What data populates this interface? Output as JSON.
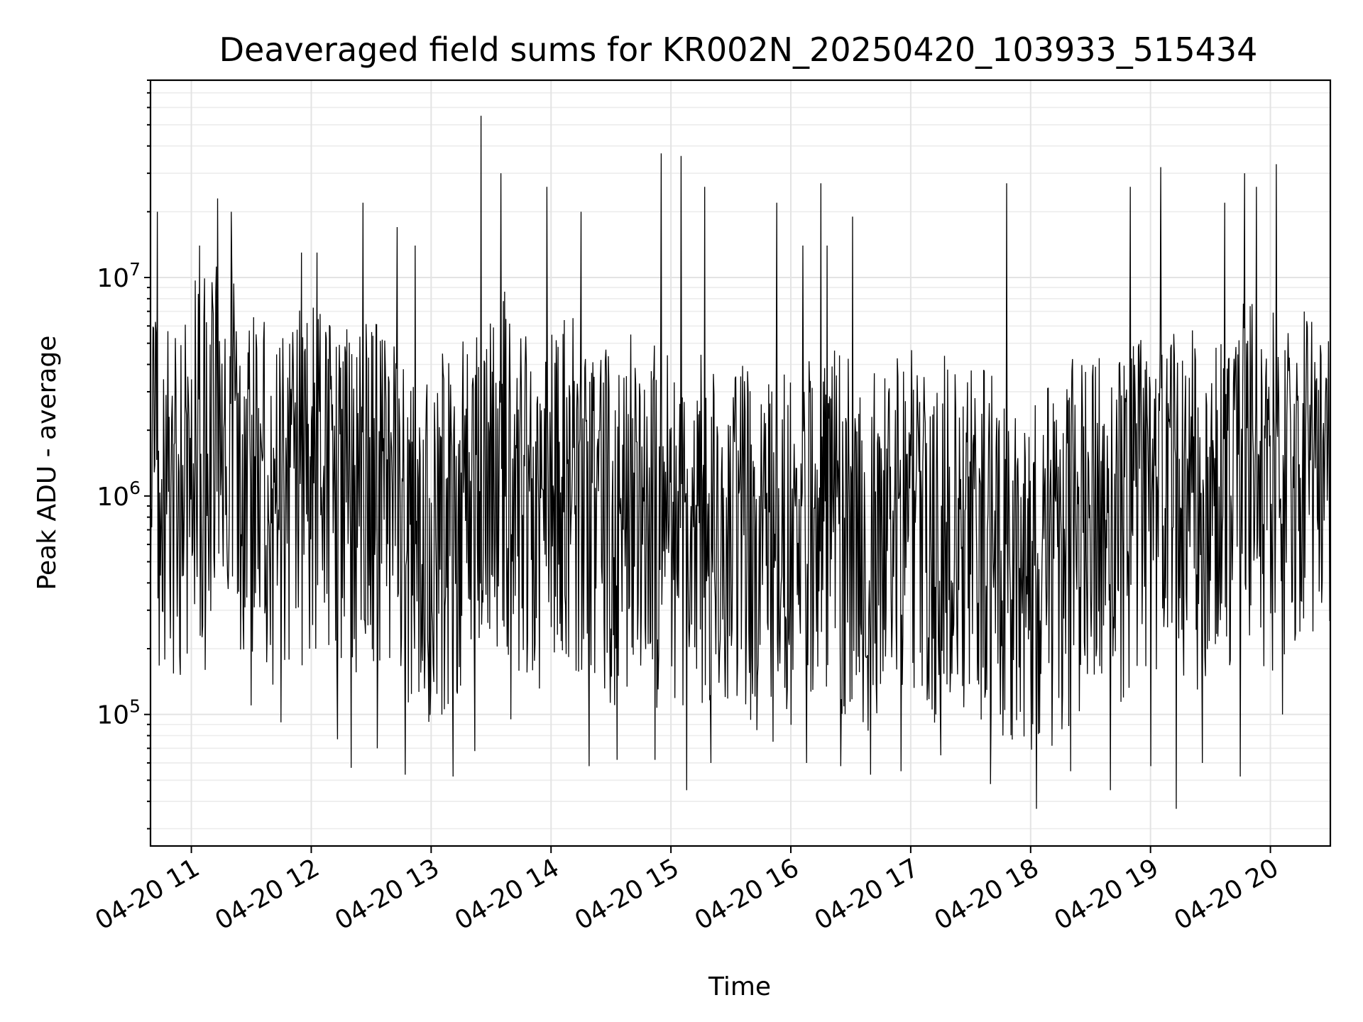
{
  "chart_data": {
    "type": "line",
    "title": "Deaveraged field sums for KR002N_20250420_103933_515434",
    "xlabel": "Time",
    "ylabel": "Peak ADU - average",
    "xlim": [
      "2025-04-20T10:39:33",
      "2025-04-20T20:30:00"
    ],
    "ylim": [
      25000,
      80000000
    ],
    "yscale": "log",
    "grid": true,
    "x_ticks": [
      "2025-04-20T11:00",
      "2025-04-20T12:00",
      "2025-04-20T13:00",
      "2025-04-20T14:00",
      "2025-04-20T15:00",
      "2025-04-20T16:00",
      "2025-04-20T17:00",
      "2025-04-20T18:00",
      "2025-04-20T19:00",
      "2025-04-20T20:00"
    ],
    "x_tick_labels": [
      "04-20 11",
      "04-20 12",
      "04-20 13",
      "04-20 14",
      "04-20 15",
      "04-20 16",
      "04-20 17",
      "04-20 18",
      "04-20 19",
      "04-20 20"
    ],
    "y_ticks": [
      100000,
      1000000,
      10000000
    ],
    "y_tick_labels": [
      {
        "base": "10",
        "exp": "5"
      },
      {
        "base": "10",
        "exp": "6"
      },
      {
        "base": "10",
        "exp": "7"
      }
    ],
    "series": [
      {
        "color": "#000000",
        "x": [
          "2025-04-20T10:40",
          "2025-04-20T10:50",
          "2025-04-20T11:00",
          "2025-04-20T11:10",
          "2025-04-20T11:20",
          "2025-04-20T11:30",
          "2025-04-20T11:40",
          "2025-04-20T11:50",
          "2025-04-20T12:00",
          "2025-04-20T12:10",
          "2025-04-20T12:20",
          "2025-04-20T12:30",
          "2025-04-20T12:40",
          "2025-04-20T12:50",
          "2025-04-20T13:00",
          "2025-04-20T13:10",
          "2025-04-20T13:20",
          "2025-04-20T13:30",
          "2025-04-20T13:40",
          "2025-04-20T13:50",
          "2025-04-20T14:00",
          "2025-04-20T14:10",
          "2025-04-20T14:20",
          "2025-04-20T14:30",
          "2025-04-20T14:40",
          "2025-04-20T14:50",
          "2025-04-20T15:00",
          "2025-04-20T15:10",
          "2025-04-20T15:20",
          "2025-04-20T15:30",
          "2025-04-20T15:40",
          "2025-04-20T15:50",
          "2025-04-20T16:00",
          "2025-04-20T16:10",
          "2025-04-20T16:20",
          "2025-04-20T16:30",
          "2025-04-20T16:40",
          "2025-04-20T16:50",
          "2025-04-20T17:00",
          "2025-04-20T17:10",
          "2025-04-20T17:20",
          "2025-04-20T17:30",
          "2025-04-20T17:40",
          "2025-04-20T17:50",
          "2025-04-20T18:00",
          "2025-04-20T18:10",
          "2025-04-20T18:20",
          "2025-04-20T18:30",
          "2025-04-20T18:40",
          "2025-04-20T18:50",
          "2025-04-20T19:00",
          "2025-04-20T19:10",
          "2025-04-20T19:20",
          "2025-04-20T19:30",
          "2025-04-20T19:40",
          "2025-04-20T19:50",
          "2025-04-20T20:00",
          "2025-04-20T20:10",
          "2025-04-20T20:20",
          "2025-04-20T20:30"
        ],
        "y": [
          1500000,
          1200000,
          2000000,
          2500000,
          2200000,
          1600000,
          1300000,
          1500000,
          1800000,
          1500000,
          1400000,
          1500000,
          1300000,
          1100000,
          900000,
          1000000,
          1200000,
          2000000,
          1800000,
          1200000,
          1300000,
          1500000,
          1200000,
          1000000,
          1200000,
          1100000,
          900000,
          1100000,
          1000000,
          1200000,
          900000,
          700000,
          800000,
          900000,
          1000000,
          900000,
          800000,
          900000,
          1000000,
          800000,
          1000000,
          900000,
          800000,
          700000,
          600000,
          700000,
          900000,
          1000000,
          1000000,
          1200000,
          1100000,
          1300000,
          1200000,
          1400000,
          1500000,
          1800000,
          1600000,
          1400000,
          1600000,
          1800000
        ],
        "peak_x": [
          "2025-04-20T10:43",
          "2025-04-20T11:04",
          "2025-04-20T11:13",
          "2025-04-20T11:20",
          "2025-04-20T11:55",
          "2025-04-20T12:03",
          "2025-04-20T12:26",
          "2025-04-20T12:43",
          "2025-04-20T12:52",
          "2025-04-20T13:25",
          "2025-04-20T13:35",
          "2025-04-20T13:58",
          "2025-04-20T14:15",
          "2025-04-20T14:55",
          "2025-04-20T15:05",
          "2025-04-20T15:17",
          "2025-04-20T15:53",
          "2025-04-20T16:06",
          "2025-04-20T16:15",
          "2025-04-20T16:18",
          "2025-04-20T16:31",
          "2025-04-20T17:48",
          "2025-04-20T18:50",
          "2025-04-20T19:05",
          "2025-04-20T19:37",
          "2025-04-20T19:47",
          "2025-04-20T19:53",
          "2025-04-20T20:03"
        ],
        "peak_y": [
          20000000,
          14000000,
          23000000,
          20000000,
          13000000,
          13000000,
          22000000,
          17000000,
          14000000,
          55000000,
          30000000,
          26000000,
          20000000,
          37000000,
          36000000,
          26000000,
          22000000,
          14000000,
          27000000,
          14000000,
          19000000,
          27000000,
          26000000,
          32000000,
          22000000,
          30000000,
          26000000,
          33000000
        ],
        "trough_x": [
          "2025-04-20T10:58",
          "2025-04-20T11:07",
          "2025-04-20T11:30",
          "2025-04-20T11:45",
          "2025-04-20T12:13",
          "2025-04-20T12:20",
          "2025-04-20T12:33",
          "2025-04-20T12:47",
          "2025-04-20T13:11",
          "2025-04-20T13:22",
          "2025-04-20T13:40",
          "2025-04-20T14:19",
          "2025-04-20T14:33",
          "2025-04-20T14:52",
          "2025-04-20T15:08",
          "2025-04-20T15:20",
          "2025-04-20T15:51",
          "2025-04-20T16:08",
          "2025-04-20T16:25",
          "2025-04-20T16:40",
          "2025-04-20T16:55",
          "2025-04-20T17:15",
          "2025-04-20T17:40",
          "2025-04-20T18:03",
          "2025-04-20T18:20",
          "2025-04-20T18:40",
          "2025-04-20T19:00",
          "2025-04-20T19:13",
          "2025-04-20T19:26",
          "2025-04-20T19:45",
          "2025-04-20T20:06"
        ],
        "trough_y": [
          190000,
          160000,
          110000,
          92000,
          77000,
          57000,
          70000,
          53000,
          52000,
          68000,
          95000,
          58000,
          62000,
          62000,
          45000,
          60000,
          75000,
          60000,
          58000,
          53000,
          55000,
          65000,
          48000,
          37000,
          55000,
          45000,
          58000,
          37000,
          60000,
          52000,
          100000
        ]
      }
    ]
  }
}
